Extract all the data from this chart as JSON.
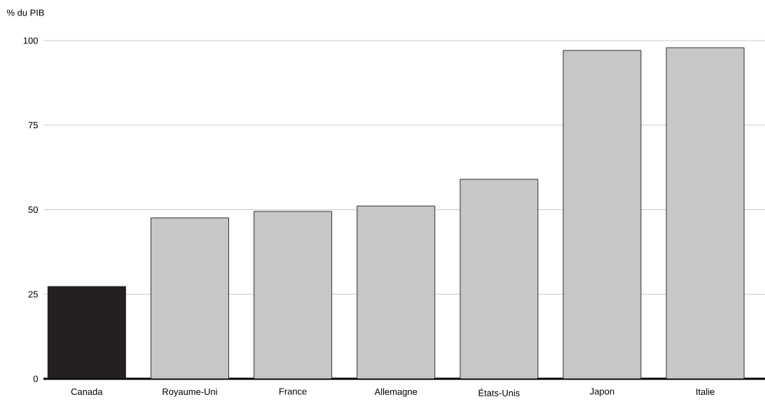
{
  "chart_data": {
    "type": "bar",
    "ylabel": "% du PIB",
    "categories": [
      "Canada",
      "Royaume-Uni",
      "France",
      "Allemagne",
      "États-Unis",
      "Japon",
      "Italie"
    ],
    "values": [
      27.3,
      47.6,
      49.5,
      51.1,
      59.0,
      97.1,
      97.9
    ],
    "colors": [
      "#231f20",
      "#c6c7c9",
      "#c6c7c9",
      "#c6c7c9",
      "#c6c7c9",
      "#c6c7c9",
      "#c6c7c9"
    ],
    "ylim": [
      0,
      100
    ],
    "yticks": [
      0,
      25,
      50,
      75,
      100
    ],
    "grid": "y"
  }
}
